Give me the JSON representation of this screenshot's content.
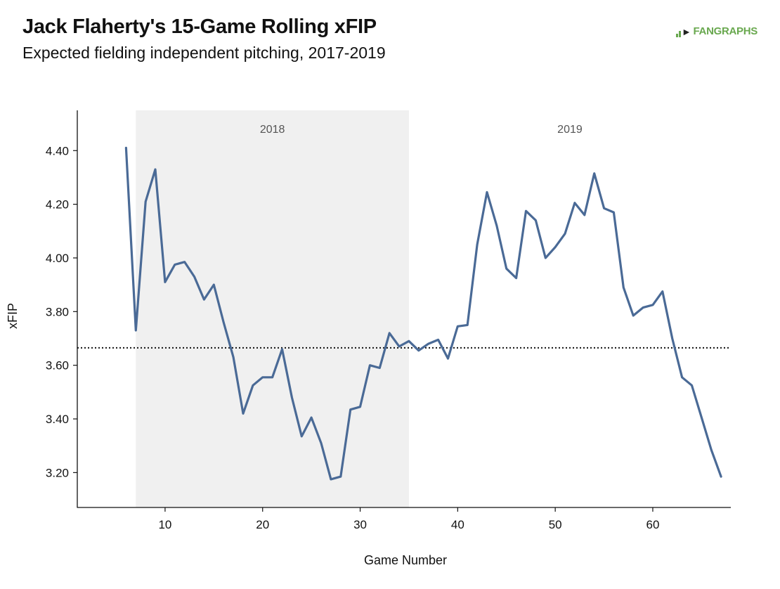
{
  "header": {
    "title": "Jack Flaherty's 15-Game Rolling xFIP",
    "subtitle": "Expected fielding independent pitching, 2017-2019",
    "logo_text": "FANGRAPHS"
  },
  "colors": {
    "line": "#4a6a96",
    "band": "#f0f0f0",
    "logo": "#69a84f"
  },
  "chart_data": {
    "type": "line",
    "xlabel": "Game Number",
    "ylabel": "xFIP",
    "xlim": [
      1,
      68
    ],
    "ylim": [
      3.07,
      4.55
    ],
    "xticks": [
      10,
      20,
      30,
      40,
      50,
      60
    ],
    "yticks": [
      3.2,
      3.4,
      3.6,
      3.8,
      4.0,
      4.2,
      4.4
    ],
    "ytick_labels": [
      "3.20",
      "3.40",
      "3.60",
      "3.80",
      "4.00",
      "4.20",
      "4.40"
    ],
    "reference_line": {
      "y": 3.665,
      "style": "dotted"
    },
    "season_bands": [
      {
        "label": "2018",
        "x_start": 7,
        "x_end": 35,
        "shaded": true
      },
      {
        "label": "2019",
        "x_start": 35,
        "x_end": 68,
        "shaded": false
      }
    ],
    "grid": false,
    "series": [
      {
        "x": [
          6,
          7,
          8,
          9,
          10,
          11,
          12,
          13,
          14,
          15,
          16,
          17,
          18,
          19,
          20,
          21,
          22,
          23,
          24,
          25,
          26,
          27,
          28,
          29,
          30,
          31,
          32,
          33,
          34,
          35,
          36,
          37,
          38,
          39,
          40,
          41,
          42,
          43,
          44,
          45,
          46,
          47,
          48,
          49,
          50,
          51,
          52,
          53,
          54,
          55,
          56,
          57,
          58,
          59,
          60,
          61,
          62,
          63,
          64,
          65,
          66,
          67
        ],
        "values": [
          4.41,
          3.73,
          4.21,
          4.33,
          3.91,
          3.975,
          3.985,
          3.93,
          3.845,
          3.9,
          3.76,
          3.63,
          3.42,
          3.525,
          3.555,
          3.555,
          3.66,
          3.48,
          3.335,
          3.405,
          3.31,
          3.175,
          3.185,
          3.435,
          3.445,
          3.6,
          3.59,
          3.72,
          3.67,
          3.69,
          3.655,
          3.68,
          3.695,
          3.625,
          3.745,
          3.75,
          4.05,
          4.245,
          4.12,
          3.96,
          3.925,
          4.175,
          4.14,
          4.0,
          4.04,
          4.09,
          4.205,
          4.16,
          4.315,
          4.185,
          4.17,
          3.89,
          3.785,
          3.815,
          3.825,
          3.875,
          3.7,
          3.555,
          3.525,
          3.405,
          3.285,
          3.185
        ]
      }
    ]
  }
}
